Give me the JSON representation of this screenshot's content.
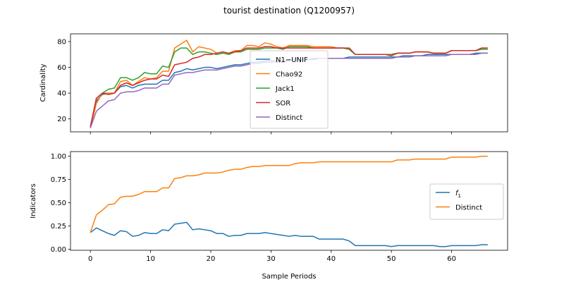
{
  "title": "tourist destination (Q1200957)",
  "colors": {
    "N1-UNIF": "#1f77b4",
    "Chao92": "#ff7f0e",
    "Jack1": "#2ca02c",
    "SOR": "#d62728",
    "Distinct": "#9467bd",
    "f1": "#1f77b4",
    "Distinct_ind": "#ff7f0e"
  },
  "chart_data": [
    {
      "type": "line",
      "ylabel": "Cardinality",
      "xlabel": "",
      "xlim": [
        -3.3,
        69.3
      ],
      "ylim": [
        10,
        86
      ],
      "xticks": [
        0,
        10,
        20,
        30,
        40,
        50,
        60
      ],
      "xtick_labels_visible": false,
      "yticks": [
        20,
        40,
        60,
        80
      ],
      "legend": "center",
      "x": [
        0,
        1,
        2,
        3,
        4,
        5,
        6,
        7,
        8,
        9,
        10,
        11,
        12,
        13,
        14,
        15,
        16,
        17,
        18,
        19,
        20,
        21,
        22,
        23,
        24,
        25,
        26,
        27,
        28,
        29,
        30,
        31,
        32,
        33,
        34,
        35,
        36,
        37,
        38,
        39,
        40,
        41,
        42,
        43,
        44,
        45,
        46,
        47,
        48,
        49,
        50,
        51,
        52,
        53,
        54,
        55,
        56,
        57,
        58,
        59,
        60,
        61,
        62,
        63,
        64,
        65,
        66
      ],
      "series": [
        {
          "name": "N1−UNIF",
          "color_key": "N1-UNIF",
          "values": [
            13,
            34,
            39,
            40,
            40,
            45,
            46,
            44,
            46,
            47,
            47,
            47,
            50,
            50,
            56,
            57,
            59,
            58,
            59,
            60,
            60,
            59,
            60,
            61,
            62,
            62,
            63,
            64,
            64,
            65,
            65,
            65,
            65,
            66,
            66,
            66,
            66,
            66,
            67,
            67,
            67,
            67,
            67,
            68,
            68,
            68,
            68,
            68,
            68,
            68,
            68,
            68,
            69,
            69,
            69,
            69,
            70,
            70,
            70,
            70,
            70,
            70,
            70,
            70,
            71,
            71,
            71
          ]
        },
        {
          "name": "Chao92",
          "color_key": "Chao92",
          "values": [
            13,
            32,
            40,
            40,
            40,
            49,
            50,
            46,
            49,
            52,
            51,
            52,
            57,
            57,
            75,
            78,
            81,
            72,
            76,
            75,
            74,
            71,
            72,
            71,
            73,
            73,
            77,
            77,
            76,
            79,
            78,
            76,
            75,
            77,
            77,
            77,
            77,
            76,
            76,
            76,
            76,
            75,
            75,
            74,
            70,
            70,
            70,
            70,
            70,
            70,
            70,
            71,
            71,
            71,
            72,
            72,
            72,
            71,
            71,
            71,
            73,
            73,
            73,
            73,
            73,
            75,
            75
          ]
        },
        {
          "name": "Jack1",
          "color_key": "Jack1",
          "values": [
            14,
            36,
            40,
            43,
            44,
            52,
            52,
            50,
            52,
            56,
            55,
            55,
            61,
            60,
            72,
            75,
            75,
            70,
            72,
            72,
            71,
            70,
            71,
            70,
            72,
            72,
            74,
            74,
            74,
            75,
            75,
            75,
            74,
            76,
            76,
            76,
            76,
            75,
            75,
            75,
            75,
            75,
            75,
            74,
            70,
            70,
            70,
            70,
            70,
            70,
            70,
            71,
            71,
            71,
            72,
            72,
            72,
            71,
            71,
            71,
            73,
            73,
            73,
            73,
            73,
            74,
            74
          ]
        },
        {
          "name": "SOR",
          "color_key": "SOR",
          "values": [
            14,
            36,
            40,
            39,
            40,
            46,
            48,
            46,
            48,
            50,
            51,
            51,
            54,
            53,
            62,
            63,
            64,
            67,
            68,
            70,
            70,
            71,
            72,
            71,
            72,
            73,
            75,
            75,
            75,
            76,
            76,
            75,
            75,
            75,
            75,
            75,
            75,
            75,
            75,
            75,
            75,
            75,
            75,
            75,
            70,
            70,
            70,
            70,
            70,
            70,
            69,
            71,
            71,
            71,
            72,
            72,
            72,
            71,
            71,
            71,
            73,
            73,
            73,
            73,
            73,
            75,
            75
          ]
        },
        {
          "name": "Distinct",
          "color_key": "Distinct",
          "values": [
            13,
            26,
            30,
            34,
            35,
            40,
            41,
            41,
            42,
            44,
            44,
            44,
            47,
            47,
            54,
            55,
            56,
            56,
            57,
            58,
            58,
            58,
            59,
            60,
            61,
            61,
            62,
            63,
            63,
            64,
            64,
            64,
            64,
            65,
            66,
            66,
            66,
            67,
            67,
            67,
            67,
            67,
            67,
            67,
            67,
            67,
            67,
            67,
            67,
            67,
            67,
            68,
            68,
            68,
            69,
            69,
            69,
            69,
            69,
            69,
            70,
            70,
            70,
            70,
            70,
            71,
            71
          ]
        }
      ]
    },
    {
      "type": "line",
      "ylabel": "Indicators",
      "xlabel": "Sample Periods",
      "xlim": [
        -3.3,
        69.3
      ],
      "ylim": [
        -0.01,
        1.05
      ],
      "xticks": [
        0,
        10,
        20,
        30,
        40,
        50,
        60
      ],
      "yticks": [
        0.0,
        0.25,
        0.5,
        0.75,
        1.0
      ],
      "legend": "center-right",
      "x": [
        0,
        1,
        2,
        3,
        4,
        5,
        6,
        7,
        8,
        9,
        10,
        11,
        12,
        13,
        14,
        15,
        16,
        17,
        18,
        19,
        20,
        21,
        22,
        23,
        24,
        25,
        26,
        27,
        28,
        29,
        30,
        31,
        32,
        33,
        34,
        35,
        36,
        37,
        38,
        39,
        40,
        41,
        42,
        43,
        44,
        45,
        46,
        47,
        48,
        49,
        50,
        51,
        52,
        53,
        54,
        55,
        56,
        57,
        58,
        59,
        60,
        61,
        62,
        63,
        64,
        65,
        66
      ],
      "series": [
        {
          "name": "f_1",
          "label_main": "f",
          "label_sub": "1",
          "color_key": "f1",
          "values": [
            0.18,
            0.23,
            0.2,
            0.17,
            0.15,
            0.2,
            0.19,
            0.14,
            0.15,
            0.18,
            0.17,
            0.17,
            0.21,
            0.2,
            0.27,
            0.28,
            0.29,
            0.21,
            0.22,
            0.21,
            0.2,
            0.17,
            0.17,
            0.14,
            0.15,
            0.15,
            0.17,
            0.17,
            0.17,
            0.18,
            0.17,
            0.16,
            0.15,
            0.14,
            0.15,
            0.14,
            0.14,
            0.14,
            0.11,
            0.11,
            0.11,
            0.11,
            0.11,
            0.09,
            0.04,
            0.04,
            0.04,
            0.04,
            0.04,
            0.04,
            0.03,
            0.04,
            0.04,
            0.04,
            0.04,
            0.04,
            0.04,
            0.04,
            0.03,
            0.03,
            0.04,
            0.04,
            0.04,
            0.04,
            0.04,
            0.05,
            0.05
          ]
        },
        {
          "name": "Distinct",
          "color_key": "Distinct_ind",
          "values": [
            0.18,
            0.37,
            0.42,
            0.48,
            0.49,
            0.56,
            0.57,
            0.57,
            0.59,
            0.62,
            0.62,
            0.62,
            0.66,
            0.66,
            0.76,
            0.77,
            0.79,
            0.79,
            0.8,
            0.82,
            0.82,
            0.82,
            0.83,
            0.85,
            0.86,
            0.86,
            0.88,
            0.89,
            0.89,
            0.9,
            0.9,
            0.9,
            0.9,
            0.9,
            0.92,
            0.93,
            0.93,
            0.93,
            0.94,
            0.94,
            0.94,
            0.94,
            0.94,
            0.94,
            0.94,
            0.94,
            0.94,
            0.94,
            0.94,
            0.94,
            0.94,
            0.96,
            0.96,
            0.96,
            0.97,
            0.97,
            0.97,
            0.97,
            0.97,
            0.97,
            0.99,
            0.99,
            0.99,
            0.99,
            0.99,
            1.0,
            1.0
          ]
        }
      ]
    }
  ]
}
